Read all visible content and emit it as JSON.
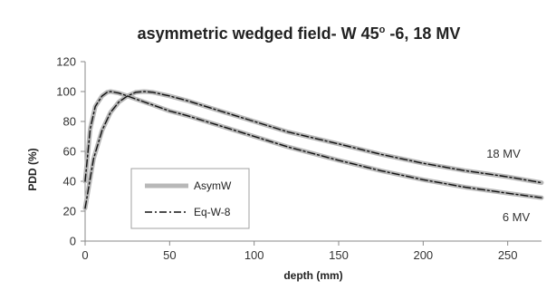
{
  "chart_data": {
    "type": "line",
    "title": "asymmetric wedged field- W 45",
    "title_degree": "o",
    "title_rest": " -6, 18 MV",
    "xlabel": "depth (mm)",
    "ylabel": "PDD (%)",
    "xlim": [
      0,
      270
    ],
    "ylim": [
      0,
      120
    ],
    "xticks": [
      "0",
      "50",
      "100",
      "150",
      "200",
      "250"
    ],
    "yticks": [
      "0",
      "20",
      "40",
      "60",
      "80",
      "100",
      "120"
    ],
    "grid": false,
    "legend_position": "lower-left",
    "annotations": [
      "18 MV",
      "6 MV"
    ],
    "series": [
      {
        "name": "AsymW",
        "group": "6 MV",
        "style": "solid",
        "color": "#b8b8b8",
        "x": [
          0,
          3,
          6,
          10,
          13,
          15,
          20,
          25,
          30,
          40,
          50,
          60,
          80,
          100,
          120,
          150,
          175,
          200,
          225,
          250,
          270
        ],
        "y": [
          40,
          75,
          90,
          97,
          99.5,
          100,
          99,
          97,
          95,
          91,
          87,
          84,
          77,
          70,
          63,
          54,
          47,
          41,
          36,
          32,
          29
        ]
      },
      {
        "name": "Eq-W-8",
        "group": "6 MV",
        "style": "dashdot",
        "color": "#111111",
        "x": [
          0,
          3,
          6,
          10,
          13,
          15,
          20,
          25,
          30,
          40,
          50,
          60,
          80,
          100,
          120,
          150,
          175,
          200,
          225,
          250,
          270
        ],
        "y": [
          40,
          75,
          90,
          97,
          99.5,
          100,
          99,
          97,
          95,
          91,
          87,
          84,
          77,
          70,
          63,
          54,
          47,
          41,
          36,
          32,
          29
        ]
      },
      {
        "name": "AsymW",
        "group": "18 MV",
        "style": "solid",
        "color": "#b8b8b8",
        "x": [
          0,
          5,
          10,
          15,
          20,
          25,
          30,
          35,
          40,
          50,
          60,
          80,
          100,
          120,
          150,
          175,
          200,
          225,
          250,
          270
        ],
        "y": [
          22,
          55,
          74,
          86,
          93,
          97,
          99.5,
          100,
          99.5,
          97,
          94,
          87,
          80,
          73,
          65,
          58,
          52,
          47,
          43,
          39
        ]
      },
      {
        "name": "Eq-W-8",
        "group": "18 MV",
        "style": "dashdot",
        "color": "#111111",
        "x": [
          0,
          5,
          10,
          15,
          20,
          25,
          30,
          35,
          40,
          50,
          60,
          80,
          100,
          120,
          150,
          175,
          200,
          225,
          250,
          270
        ],
        "y": [
          22,
          55,
          74,
          86,
          93,
          97,
          99.5,
          100,
          99.5,
          97,
          94,
          87,
          80,
          73,
          65,
          58,
          52,
          47,
          43,
          39
        ]
      }
    ],
    "legend": [
      {
        "label": "AsymW",
        "style": "solid",
        "color": "#b8b8b8"
      },
      {
        "label": "Eq-W-8",
        "style": "dashdot",
        "color": "#111111"
      }
    ]
  }
}
